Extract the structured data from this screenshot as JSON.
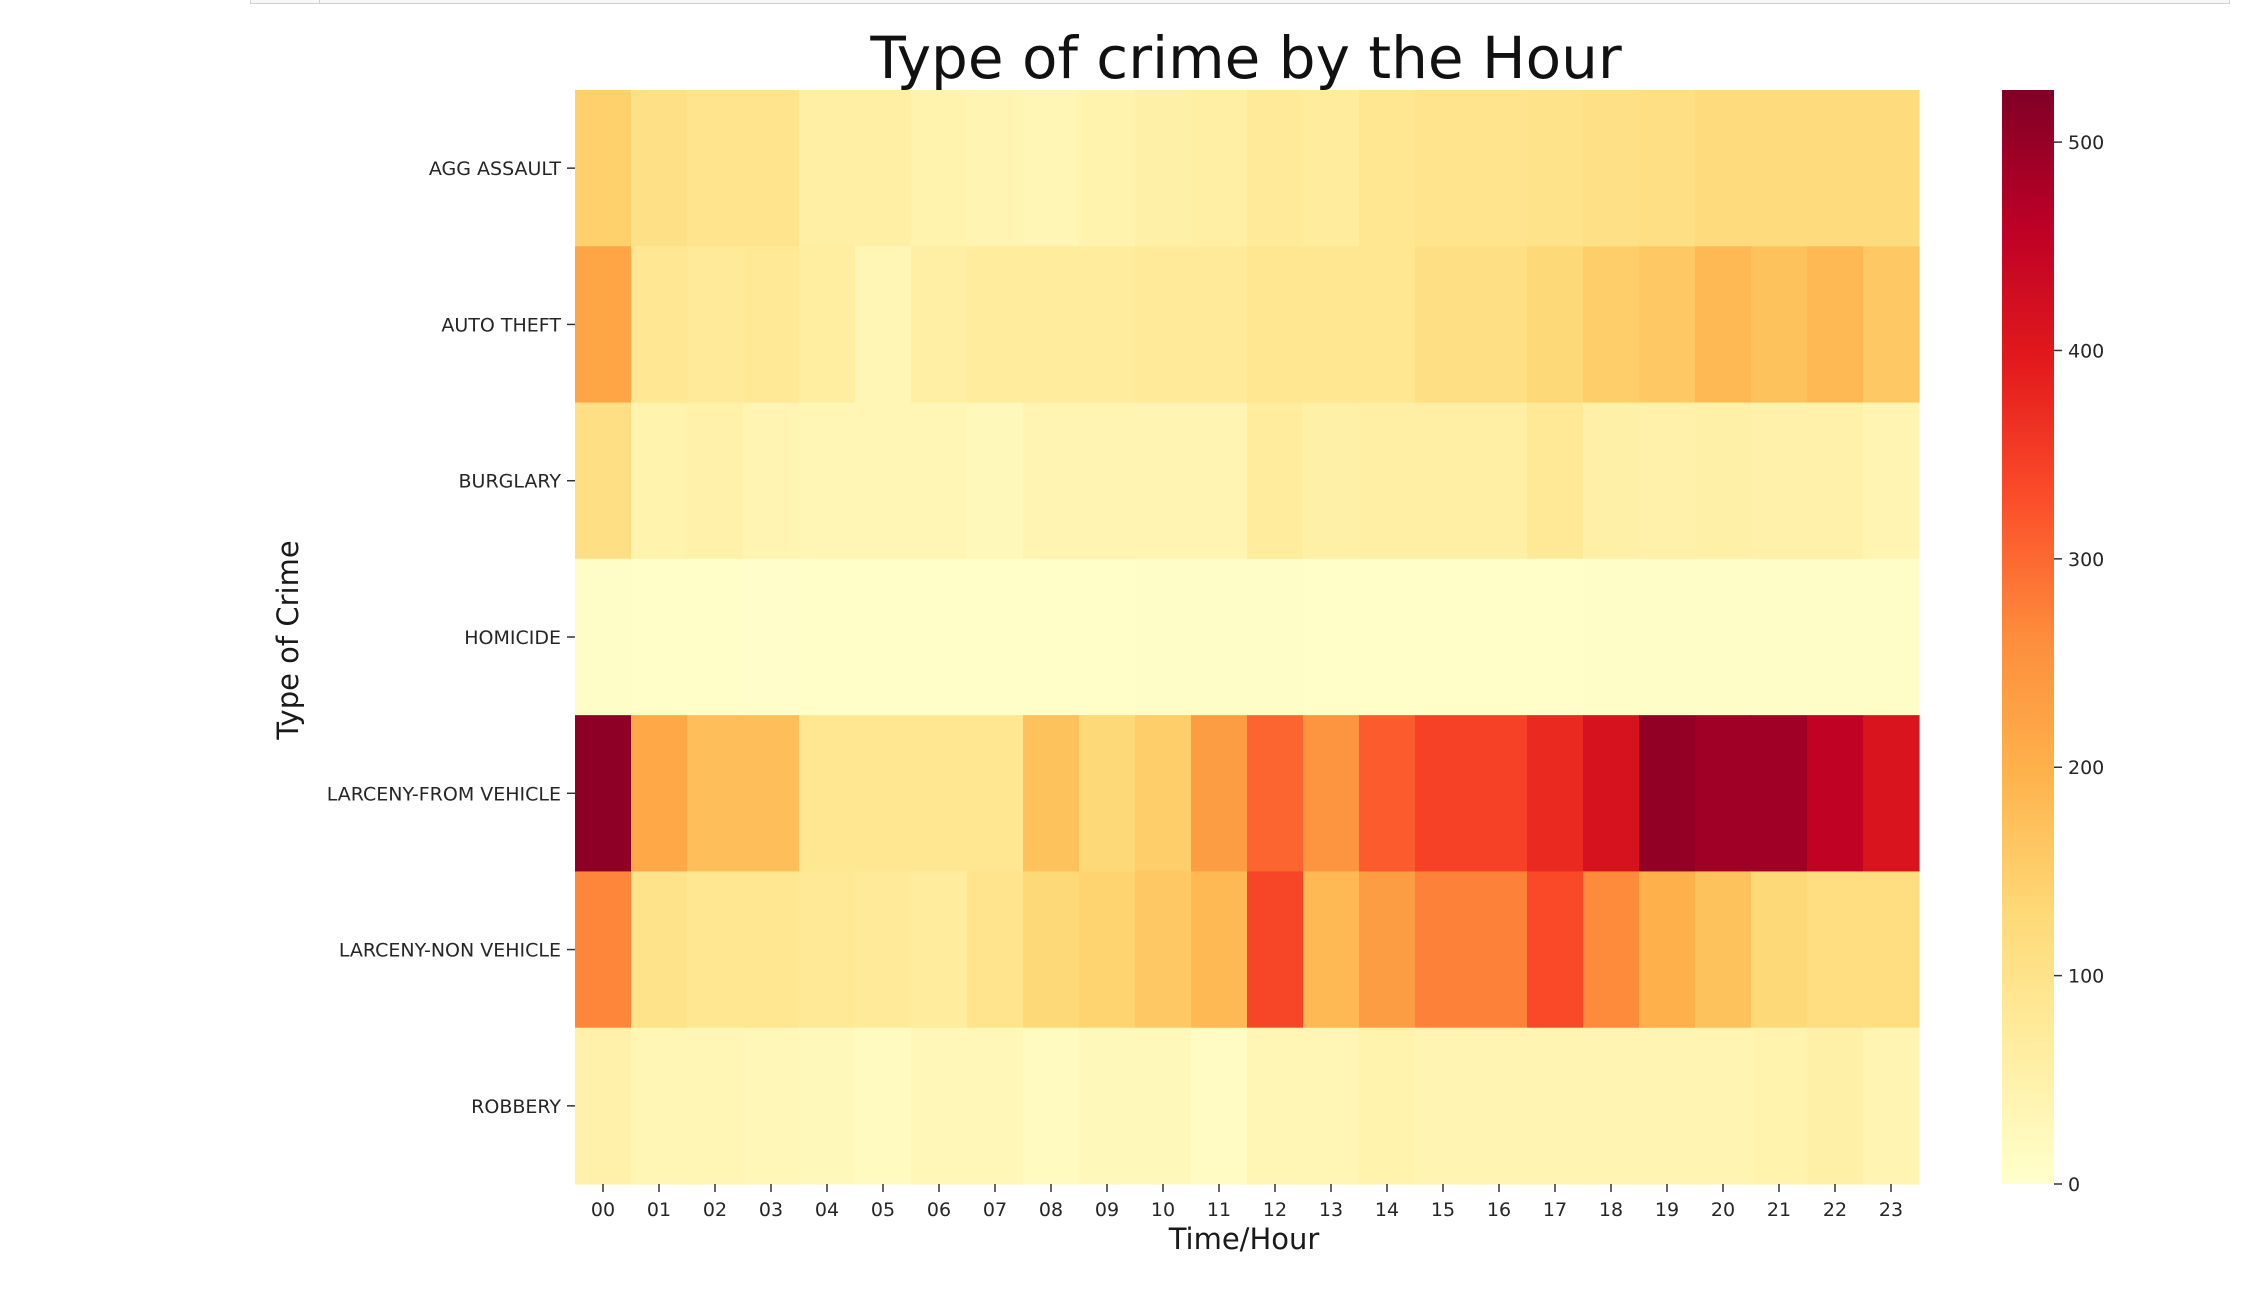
{
  "chart_data": {
    "type": "heatmap",
    "title": "Type of crime by the Hour",
    "xlabel": "Time/Hour",
    "ylabel": "Type of Crime",
    "colormap": "YlOrRd",
    "colormap_stops": [
      "#ffffcc",
      "#ffeda0",
      "#fed976",
      "#feb24c",
      "#fd8d3c",
      "#fc4e2a",
      "#e31a1c",
      "#bd0026",
      "#800026"
    ],
    "vmin": 0,
    "vmax": 525,
    "colorbar_ticks": [
      0,
      100,
      200,
      300,
      400,
      500
    ],
    "x_categories": [
      "00",
      "01",
      "02",
      "03",
      "04",
      "05",
      "06",
      "07",
      "08",
      "09",
      "10",
      "11",
      "12",
      "13",
      "14",
      "15",
      "16",
      "17",
      "18",
      "19",
      "20",
      "21",
      "22",
      "23"
    ],
    "y_categories": [
      "AGG ASSAULT",
      "AUTO THEFT",
      "BURGLARY",
      "HOMICIDE",
      "LARCENY-FROM VEHICLE",
      "LARCENY-NON VEHICLE",
      "ROBBERY"
    ],
    "values": [
      [
        145,
        105,
        95,
        95,
        60,
        60,
        45,
        40,
        35,
        45,
        55,
        60,
        75,
        70,
        90,
        95,
        95,
        100,
        105,
        110,
        120,
        120,
        120,
        120
      ],
      [
        220,
        85,
        75,
        80,
        65,
        35,
        60,
        70,
        70,
        70,
        75,
        75,
        90,
        90,
        90,
        110,
        110,
        130,
        150,
        160,
        185,
        170,
        185,
        160
      ],
      [
        110,
        45,
        50,
        40,
        35,
        35,
        35,
        25,
        40,
        40,
        40,
        40,
        70,
        55,
        60,
        60,
        60,
        80,
        55,
        50,
        55,
        50,
        50,
        40
      ],
      [
        8,
        5,
        5,
        3,
        4,
        4,
        6,
        6,
        6,
        6,
        7,
        7,
        8,
        6,
        5,
        5,
        5,
        6,
        7,
        8,
        8,
        8,
        7,
        7
      ],
      [
        510,
        215,
        175,
        175,
        90,
        90,
        90,
        90,
        170,
        130,
        150,
        235,
        305,
        250,
        315,
        345,
        345,
        375,
        415,
        505,
        490,
        490,
        455,
        410
      ],
      [
        270,
        100,
        90,
        90,
        80,
        75,
        70,
        95,
        130,
        140,
        160,
        185,
        340,
        185,
        235,
        275,
        275,
        335,
        265,
        200,
        170,
        130,
        115,
        115
      ],
      [
        50,
        35,
        35,
        30,
        25,
        20,
        30,
        30,
        20,
        25,
        25,
        15,
        35,
        35,
        45,
        40,
        40,
        40,
        40,
        40,
        40,
        45,
        55,
        40
      ]
    ]
  }
}
